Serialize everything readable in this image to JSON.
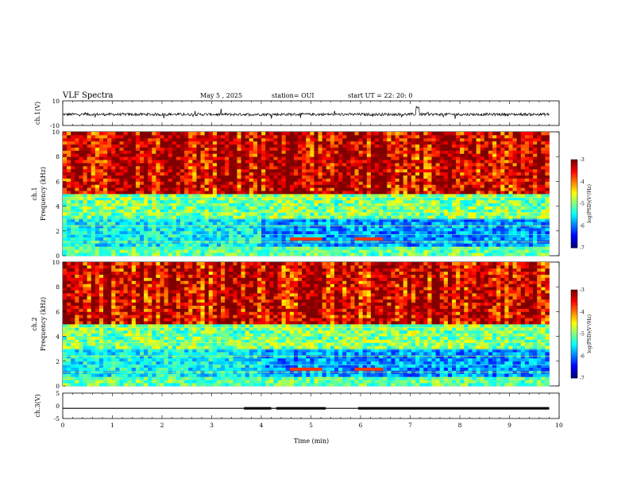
{
  "header": {
    "title": "VLF Spectra",
    "date": "May 5 , 2025",
    "station": "station= OUI",
    "start": "start UT = 22: 20: 0"
  },
  "chart_data": [
    {
      "type": "line",
      "panel": "waveform-ch1",
      "ylabel": "ch.1(V)",
      "ylim": [
        -10,
        10
      ],
      "yticks": [
        "10",
        "-10"
      ],
      "xlim": [
        0,
        10
      ],
      "series": [
        {
          "values_description_free": true,
          "baseline": -1,
          "amplitude": 3
        }
      ]
    },
    {
      "type": "heatmap",
      "panel": "spectrogram-ch1",
      "ylabel": "ch.1\nFrequency (kHz)",
      "ylim": [
        0,
        10
      ],
      "yticks": [
        "0",
        "2",
        "4",
        "6",
        "8",
        "10"
      ],
      "xlim": [
        0,
        9.8
      ],
      "colorbar": {
        "label": "log(PSD)(V²/Hz)",
        "range": [
          -7,
          -3
        ],
        "ticks": [
          "-3",
          "-4",
          "-5",
          "-6",
          "-7"
        ]
      }
    },
    {
      "type": "heatmap",
      "panel": "spectrogram-ch2",
      "ylabel": "ch.2\nFrequency (kHz)",
      "ylim": [
        0,
        10
      ],
      "yticks": [
        "0",
        "2",
        "4",
        "6",
        "8",
        "10"
      ],
      "xlim": [
        0,
        9.8
      ],
      "colorbar": {
        "label": "log(PSD)(V²/Hz)",
        "range": [
          -7,
          -3
        ],
        "ticks": [
          "-3",
          "-4",
          "-5",
          "-6",
          "-7"
        ]
      }
    },
    {
      "type": "line",
      "panel": "trigger-ch3",
      "ylabel": "ch.3(V)",
      "ylim": [
        -5,
        5
      ],
      "yticks": [
        "5",
        "0",
        "-5"
      ],
      "xlim": [
        0,
        10
      ],
      "series": [
        {
          "baseline": -1,
          "segments": [
            [
              0,
              3.65,
              -1
            ],
            [
              3.65,
              4.2,
              -0.5
            ],
            [
              4.2,
              4.3,
              -1
            ],
            [
              4.3,
              5.3,
              -0.5
            ],
            [
              5.3,
              5.95,
              -1
            ],
            [
              5.95,
              9.8,
              -0.5
            ]
          ]
        }
      ]
    }
  ],
  "xaxis": {
    "label": "Time (min)",
    "ticks": [
      "0",
      "1",
      "2",
      "3",
      "4",
      "5",
      "6",
      "7",
      "8",
      "9",
      "10"
    ]
  },
  "colors": {
    "axis": "#000000",
    "low": "#000080",
    "high": "#ff0000"
  }
}
